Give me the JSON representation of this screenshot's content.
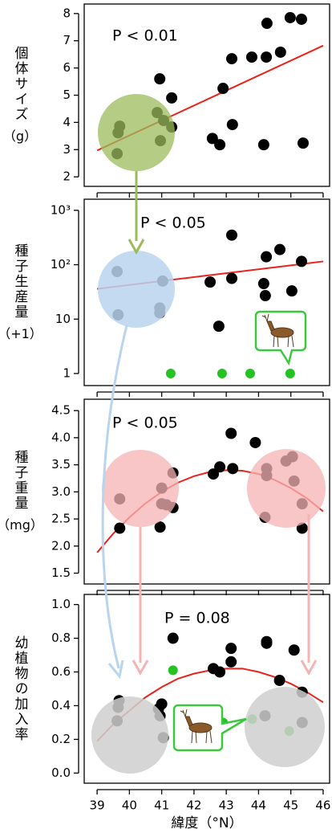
{
  "chart_data": [
    {
      "type": "scatter",
      "ylabel": "個体サイズ",
      "yunit": "（g）",
      "annotation": "P < 0.01",
      "xlim": [
        38.6,
        46.2
      ],
      "ylim": [
        1.65,
        8.35
      ],
      "yticks": [
        2,
        3,
        4,
        5,
        6,
        7,
        8
      ],
      "series": [
        {
          "color": "#000000",
          "x": [
            39.65,
            39.7,
            39.62,
            40.94,
            40.86,
            41.06,
            41.31,
            41.31,
            40.96,
            42.57,
            42.8,
            42.9,
            43.17,
            43.19,
            43.79,
            44.24,
            44.26,
            44.16,
            44.68,
            44.98,
            45.33,
            45.38
          ],
          "values": [
            3.62,
            3.86,
            2.85,
            5.6,
            4.36,
            4.07,
            4.9,
            3.83,
            3.33,
            3.41,
            3.18,
            5.25,
            6.34,
            3.92,
            6.4,
            6.4,
            7.64,
            3.18,
            6.58,
            7.85,
            7.79,
            3.24
          ]
        }
      ],
      "fit_line": {
        "color": "#e8231c",
        "x": [
          39,
          46
        ],
        "y": [
          2.97,
          6.82
        ]
      }
    },
    {
      "type": "scatter",
      "ylabel": "種子生産量",
      "yunit": "（+1）",
      "annotation": "P < 0.05",
      "log_y": true,
      "xlim": [
        38.6,
        46.2
      ],
      "ylim": [
        0.6,
        1600
      ],
      "yticks": [
        1,
        10,
        {
          "value": 100,
          "label": "10²"
        },
        {
          "value": 1000,
          "label": "10³"
        }
      ],
      "series": [
        {
          "color": "#000000",
          "x": [
            39.62,
            39.65,
            41.03,
            40.94,
            40.94,
            42.5,
            42.77,
            43.17,
            43.17,
            44.24,
            44.66,
            44.16,
            44.21,
            45.03,
            45.33
          ],
          "values": [
            75,
            12,
            50,
            16,
            13,
            48,
            7.4,
            350,
            56,
            140,
            190,
            45,
            27,
            33,
            115
          ]
        },
        {
          "color": "#22c322",
          "x": [
            41.28,
            42.87,
            43.74,
            44.98
          ],
          "values": [
            1,
            1,
            1,
            1
          ]
        }
      ],
      "fit_line": {
        "color": "#e8231c",
        "x": [
          39,
          46
        ],
        "y": [
          36,
          115
        ]
      }
    },
    {
      "type": "scatter",
      "ylabel": "種子重量",
      "yunit": "（mg）",
      "annotation": "P < 0.05",
      "xlim": [
        38.6,
        46.2
      ],
      "ylim": [
        1.3,
        4.71
      ],
      "yticks": [
        1.5,
        {
          "value": 2,
          "label": "2.0"
        },
        2.5,
        {
          "value": 3,
          "label": "3.0"
        },
        3.5,
        {
          "value": 4,
          "label": "4.0"
        },
        4.5
      ],
      "series": [
        {
          "color": "#000000",
          "x": [
            39.7,
            39.7,
            41.0,
            41.0,
            40.95,
            41.15,
            41.35,
            41.35,
            42.6,
            42.8,
            43.15,
            43.2,
            43.9,
            44.25,
            44.25,
            44.2,
            44.85,
            45.05,
            45.1,
            45.35,
            45.35
          ],
          "values": [
            2.87,
            2.33,
            3.07,
            2.78,
            2.35,
            2.76,
            2.71,
            3.35,
            3.33,
            3.46,
            4.08,
            3.43,
            3.91,
            3.43,
            3.3,
            2.53,
            3.57,
            3.65,
            3.2,
            2.78,
            2.33
          ]
        }
      ],
      "fit_line": {
        "color": "#e8231c",
        "x": [
          39,
          39.5,
          40,
          40.5,
          41,
          41.5,
          42,
          42.5,
          43,
          43.5,
          44,
          44.5,
          45,
          45.5,
          46
        ],
        "y": [
          1.88,
          2.23,
          2.53,
          2.79,
          3.0,
          3.17,
          3.29,
          3.37,
          3.4,
          3.39,
          3.33,
          3.22,
          3.07,
          2.88,
          2.64
        ]
      }
    },
    {
      "type": "scatter",
      "ylabel": "幼植物の加入率",
      "annotation": "P = 0.08",
      "xlabel": "緯度（°N）",
      "xlim": [
        38.6,
        46.2
      ],
      "xticks": [
        39,
        40,
        41,
        42,
        43,
        44,
        45,
        46
      ],
      "ylim": [
        -0.06,
        1.06
      ],
      "yticks": [
        {
          "value": 0,
          "label": "0.0"
        },
        0.2,
        0.4,
        0.6,
        0.8,
        {
          "value": 1,
          "label": "1.0"
        }
      ],
      "series": [
        {
          "color": "#000000",
          "x": [
            39.65,
            39.68,
            39.62,
            40.9,
            40.95,
            41.0,
            41.05,
            41.35,
            42.6,
            42.8,
            43.15,
            43.15,
            44.25,
            44.25,
            44.2,
            44.65,
            45.1,
            45.35,
            45.35
          ],
          "values": [
            0.39,
            0.43,
            0.31,
            0.38,
            0.34,
            0.41,
            0.21,
            0.8,
            0.62,
            0.6,
            0.74,
            0.66,
            0.78,
            0.77,
            0.34,
            0.55,
            0.73,
            0.48,
            0.3
          ]
        },
        {
          "color": "#22c322",
          "x": [
            41.35,
            42.9,
            43.8,
            44.95
          ],
          "values": [
            0.61,
            0.3,
            0.32,
            0.25
          ]
        }
      ],
      "fit_line": {
        "color": "#e8231c",
        "x": [
          39,
          39.5,
          40,
          40.5,
          41,
          41.5,
          42,
          42.5,
          43,
          43.5,
          44,
          44.5,
          45,
          45.5,
          46
        ],
        "y": [
          0.19,
          0.29,
          0.37,
          0.45,
          0.51,
          0.56,
          0.59,
          0.61,
          0.62,
          0.62,
          0.6,
          0.57,
          0.53,
          0.48,
          0.42
        ]
      }
    }
  ]
}
